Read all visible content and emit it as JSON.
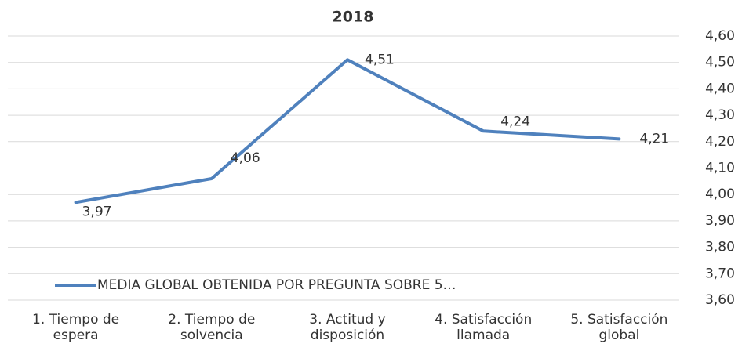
{
  "chart_data": {
    "type": "line",
    "title": "2018",
    "categories": [
      "1. Tiempo de espera",
      "2. Tiempo de solvencia",
      "3. Actitud y disposición",
      "4. Satisfacción llamada",
      "5. Satisfacción global"
    ],
    "series": [
      {
        "name": "MEDIA GLOBAL OBTENIDA POR PREGUNTA SOBRE 5…",
        "color": "#4f81bd",
        "values": [
          3.97,
          4.06,
          4.51,
          4.24,
          4.21
        ],
        "value_labels": [
          "3,97",
          "4,06",
          "4,51",
          "4,24",
          "4,21"
        ]
      }
    ],
    "ylim": [
      3.6,
      4.6
    ],
    "yticks": [
      {
        "value": 3.6,
        "label": "3,60"
      },
      {
        "value": 3.7,
        "label": "3,70"
      },
      {
        "value": 3.8,
        "label": "3,80"
      },
      {
        "value": 3.9,
        "label": "3,90"
      },
      {
        "value": 4.0,
        "label": "4,00"
      },
      {
        "value": 4.1,
        "label": "4,10"
      },
      {
        "value": 4.2,
        "label": "4,20"
      },
      {
        "value": 4.3,
        "label": "4,30"
      },
      {
        "value": 4.4,
        "label": "4,40"
      },
      {
        "value": 4.5,
        "label": "4,50"
      },
      {
        "value": 4.6,
        "label": "4,60"
      }
    ],
    "grid": true,
    "legend": "bottom-left"
  }
}
